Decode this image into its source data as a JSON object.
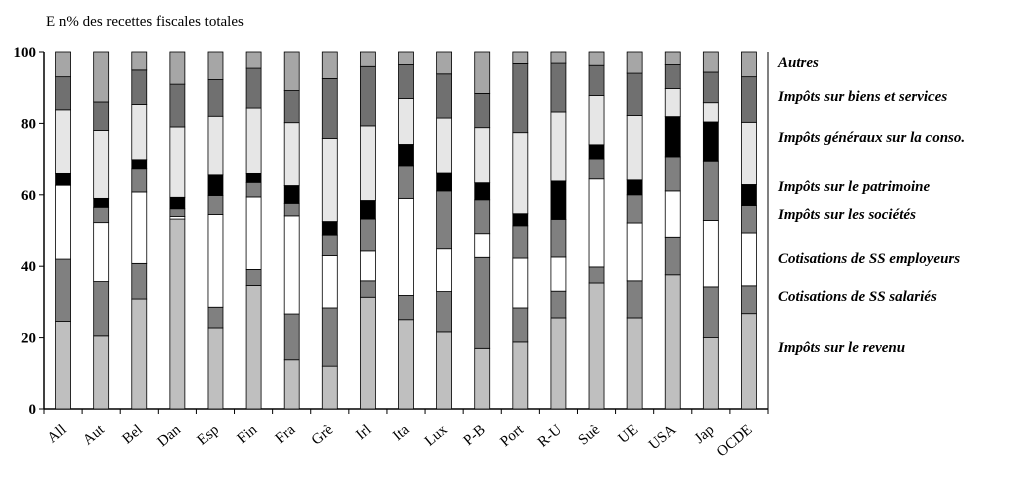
{
  "chart_data": {
    "type": "bar",
    "stacked": true,
    "title": "E n% des recettes fiscales totales",
    "ylim": [
      0,
      100
    ],
    "yticks": [
      0,
      20,
      40,
      60,
      80,
      100
    ],
    "categories": [
      "All",
      "Aut",
      "Bel",
      "Dan",
      "Esp",
      "Fin",
      "Fra",
      "Grè",
      "Irl",
      "Ita",
      "Lux",
      "P-B",
      "Port",
      "R-U",
      "Suè",
      "UE",
      "USA",
      "Jap",
      "OCDE"
    ],
    "series": [
      {
        "name": "Impôts sur le revenu",
        "color": "#bfbfbf",
        "values": [
          24.5,
          20.5,
          30.8,
          53.2,
          22.7,
          34.6,
          13.8,
          12.0,
          31.3,
          25.0,
          21.6,
          17.0,
          18.8,
          25.5,
          35.3,
          25.5,
          37.6,
          20.0,
          26.7
        ]
      },
      {
        "name": "Cotisations de SS salariés",
        "color": "#808080",
        "values": [
          17.5,
          15.2,
          10.0,
          0.0,
          5.8,
          4.5,
          12.8,
          16.3,
          4.6,
          6.8,
          11.3,
          25.5,
          9.5,
          7.5,
          4.5,
          10.4,
          10.5,
          14.2,
          7.8
        ]
      },
      {
        "name": "Cotisations de SS employeurs",
        "color": "#ffffff",
        "values": [
          20.7,
          16.5,
          20.0,
          0.7,
          26.0,
          20.3,
          27.5,
          14.7,
          8.4,
          27.2,
          12.0,
          6.6,
          14.0,
          9.6,
          24.7,
          16.2,
          13.0,
          18.6,
          14.8
        ]
      },
      {
        "name": "Impôts sur les sociétés",
        "color": "#808080",
        "values": [
          0.0,
          4.3,
          6.5,
          2.2,
          5.3,
          4.1,
          3.5,
          5.7,
          8.9,
          9.1,
          16.2,
          9.5,
          9.0,
          10.5,
          5.5,
          7.9,
          9.5,
          16.6,
          7.7
        ]
      },
      {
        "name": "Impôts sur le patrimoine",
        "color": "#000000",
        "values": [
          3.3,
          2.5,
          2.5,
          3.2,
          5.8,
          2.5,
          5.0,
          3.8,
          5.2,
          6.0,
          5.0,
          4.8,
          3.4,
          10.8,
          4.0,
          4.2,
          11.3,
          11.0,
          5.9
        ]
      },
      {
        "name": "Impôts généraux sur la conso.",
        "color": "#e6e6e6",
        "values": [
          17.8,
          19.0,
          15.5,
          19.7,
          16.4,
          18.3,
          17.6,
          23.3,
          20.9,
          12.9,
          15.4,
          15.4,
          22.7,
          19.3,
          13.8,
          18.0,
          7.9,
          5.4,
          17.4
        ]
      },
      {
        "name": "Impôts sur biens et services",
        "color": "#707070",
        "values": [
          9.3,
          8.0,
          9.7,
          12.0,
          10.3,
          11.2,
          9.0,
          16.8,
          16.7,
          9.5,
          12.4,
          9.6,
          19.4,
          13.7,
          8.5,
          11.9,
          6.7,
          8.6,
          12.8
        ]
      },
      {
        "name": "Autres",
        "color": "#a6a6a6",
        "values": [
          6.9,
          14.0,
          5.0,
          9.0,
          7.7,
          4.5,
          10.8,
          7.4,
          4.0,
          3.5,
          6.1,
          11.6,
          3.2,
          3.1,
          3.7,
          5.9,
          3.5,
          5.6,
          6.9
        ]
      }
    ],
    "legend": {
      "placement": "right",
      "labels": [
        "Autres",
        "Impôts sur biens et services",
        "Impôts généraux sur la conso.",
        "Impôts sur le patrimoine",
        "Impôts sur les sociétés",
        "Cotisations de SS employeurs",
        "Cotisations de SS salariés",
        "Impôts sur le revenu"
      ]
    }
  }
}
